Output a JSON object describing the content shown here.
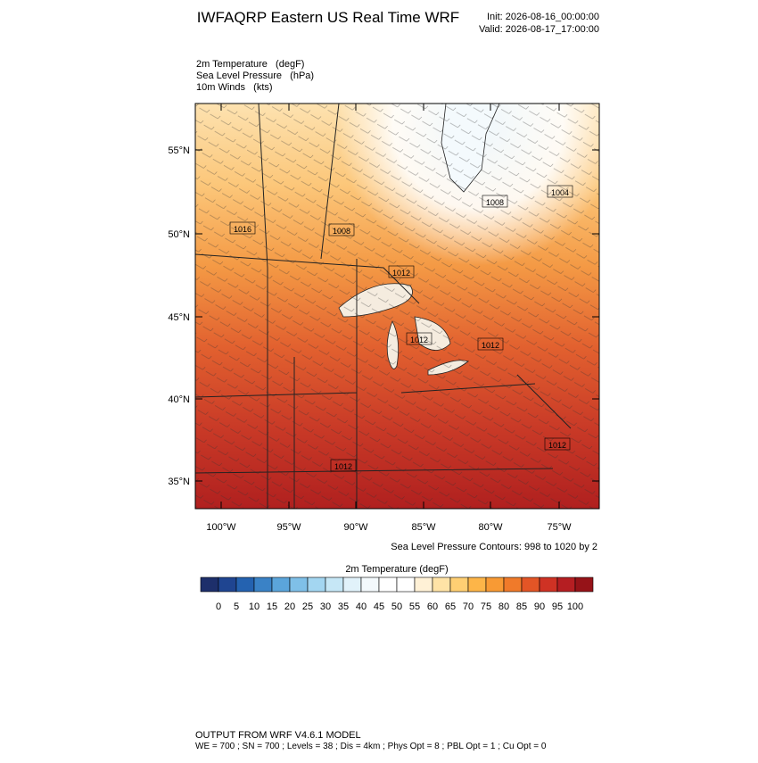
{
  "header": {
    "title": "IWFAQRP Eastern US Real Time WRF",
    "init": "Init: 2026-08-16_00:00:00",
    "valid": "Valid: 2026-08-17_17:00:00"
  },
  "fields": [
    "2m Temperature   (degF)",
    "Sea Level Pressure   (hPa)",
    "10m Winds   (kts)"
  ],
  "map": {
    "lat_labels": [
      "55°N",
      "50°N",
      "45°N",
      "40°N",
      "35°N"
    ],
    "lon_labels": [
      "100°W",
      "95°W",
      "90°W",
      "85°W",
      "80°W",
      "75°W"
    ],
    "contour_labels": [
      "1016",
      "1008",
      "1008",
      "1004",
      "1012",
      "1012",
      "1012",
      "1012",
      "1012"
    ],
    "contour_note": "Sea Level Pressure Contours: 998 to 1020 by 2"
  },
  "colorbar": {
    "title": "2m Temperature  (degF)",
    "ticks": [
      0,
      5,
      10,
      15,
      20,
      25,
      30,
      35,
      40,
      45,
      50,
      55,
      60,
      65,
      70,
      75,
      80,
      85,
      90,
      95,
      100
    ],
    "colors": [
      "#1d2f6b",
      "#1f4591",
      "#2462b0",
      "#3a82c6",
      "#5ba5db",
      "#7fc0e8",
      "#a3d6f1",
      "#c6e7f6",
      "#e1f2fa",
      "#f3f9fc",
      "#ffffff",
      "#ffffff",
      "#fff1d6",
      "#ffe3a6",
      "#ffcf73",
      "#fdb548",
      "#f89a34",
      "#f07a2a",
      "#e35526",
      "#cf3224",
      "#b51e22",
      "#961318"
    ]
  },
  "footer": {
    "line1": "OUTPUT FROM WRF V4.6.1 MODEL",
    "line2": "WE = 700 ; SN = 700 ; Levels = 38 ; Dis = 4km ; Phys Opt = 8 ; PBL Opt = 1 ; Cu Opt = 0"
  }
}
